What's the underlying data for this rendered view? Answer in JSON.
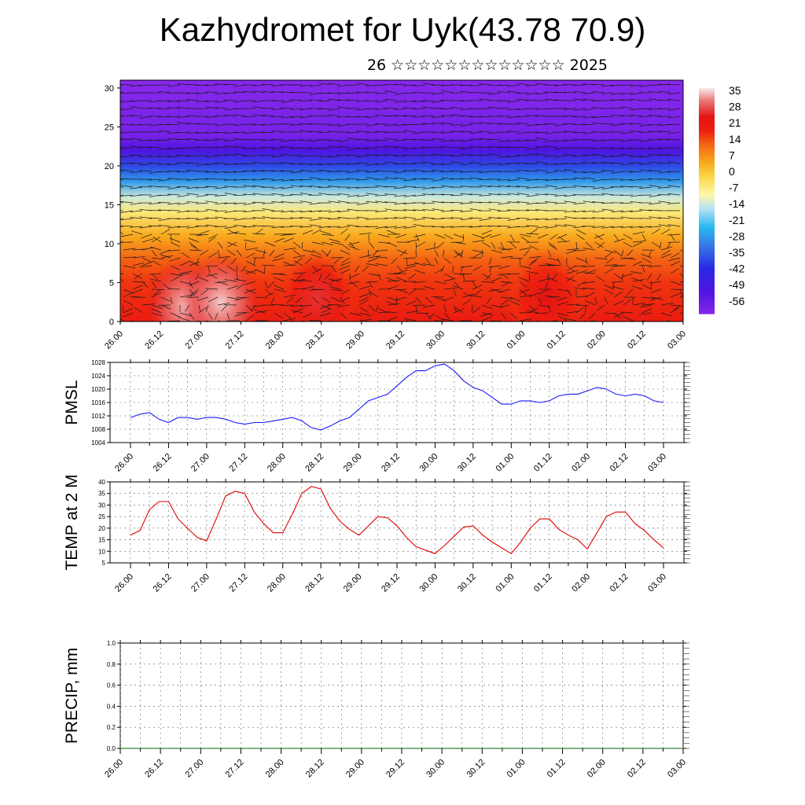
{
  "page": {
    "title": "Kazhydromet for Uyk(43.78 70.9)",
    "subtitle": "26 ☆☆☆☆☆☆☆☆☆☆☆☆☆ 2025"
  },
  "colors": {
    "pmsl_line": "#1a1aff",
    "temp_line": "#e00000",
    "precip_line": "#006400",
    "grid": "#555555"
  },
  "chart_data": [
    {
      "type": "heatmap",
      "name_hint": "vertical-profile",
      "x_ticks": [
        "26.00",
        "26.12",
        "27.00",
        "27.12",
        "28.00",
        "28.12",
        "29.00",
        "29.12",
        "30.00",
        "30.12",
        "01.00",
        "01.12",
        "02.00",
        "02.12",
        "03.00"
      ],
      "yticks": [
        0,
        5,
        10,
        15,
        20,
        25,
        30
      ],
      "ylim": [
        0,
        31
      ],
      "colorbar_labels": [
        "35",
        "28",
        "21",
        "14",
        "7",
        "0",
        "-7",
        "-14",
        "-21",
        "-28",
        "-35",
        "-42",
        "-49",
        "-56"
      ],
      "colorbar_range": [
        -60,
        38
      ],
      "layers": [
        {
          "height": 0,
          "value": 22
        },
        {
          "height": 5,
          "value": 18
        },
        {
          "height": 8,
          "value": 14
        },
        {
          "height": 11,
          "value": 6
        },
        {
          "height": 14,
          "value": -4
        },
        {
          "height": 16,
          "value": -12
        },
        {
          "height": 18,
          "value": -26
        },
        {
          "height": 20,
          "value": -36
        },
        {
          "height": 22,
          "value": -50
        },
        {
          "height": 24,
          "value": -57
        },
        {
          "height": 31,
          "value": -60
        }
      ],
      "warm_cores": [
        {
          "x": 1.6,
          "height": 2.0,
          "value": 36
        },
        {
          "x": 2.5,
          "height": 2.5,
          "value": 37
        },
        {
          "x": 4.9,
          "height": 3.0,
          "value": 28
        },
        {
          "x": 10.6,
          "height": 3.0,
          "value": 26
        }
      ]
    },
    {
      "type": "line",
      "ylabel": "PMSL",
      "x_ticks": [
        "26.00",
        "26.12",
        "27.00",
        "27.12",
        "28.00",
        "28.12",
        "29.00",
        "29.12",
        "30.00",
        "30.12",
        "01.00",
        "01.12",
        "02.00",
        "02.12",
        "03.00"
      ],
      "ylim": [
        1004,
        1028
      ],
      "yticks": [
        1004,
        1008,
        1012,
        1016,
        1020,
        1024,
        1028
      ],
      "series": [
        {
          "values": [
            1011.5,
            1012.5,
            1013,
            1011,
            1010,
            1011.5,
            1011.5,
            1011,
            1011.5,
            1011.5,
            1011,
            1010,
            1009.5,
            1010,
            1010,
            1010.5,
            1011,
            1011.5,
            1010.5,
            1008.5,
            1007.8,
            1009,
            1010.5,
            1011.5,
            1014,
            1016.5,
            1017.5,
            1018.5,
            1021,
            1023.5,
            1025.5,
            1025.5,
            1027,
            1027.5,
            1025.5,
            1022.5,
            1020.5,
            1019.5,
            1017.5,
            1015.5,
            1015.5,
            1016.5,
            1016.5,
            1016,
            1016.5,
            1018,
            1018.5,
            1018.5,
            1019.5,
            1020.5,
            1020,
            1018.5,
            1018,
            1018.5,
            1018,
            1016.5,
            1016
          ]
        }
      ]
    },
    {
      "type": "line",
      "ylabel": "TEMP at 2 M",
      "x_ticks": [
        "26.00",
        "26.12",
        "27.00",
        "27.12",
        "28.00",
        "28.12",
        "29.00",
        "29.12",
        "30.00",
        "30.12",
        "01.00",
        "01.12",
        "02.00",
        "02.12",
        "03.00"
      ],
      "ylim": [
        5,
        40
      ],
      "yticks": [
        5,
        10,
        15,
        20,
        25,
        30,
        35,
        40
      ],
      "series": [
        {
          "values": [
            17,
            19,
            28,
            31.5,
            31.5,
            24,
            20,
            16,
            14.5,
            24,
            34,
            36,
            35,
            27,
            22,
            18,
            18,
            26,
            35,
            38,
            37,
            28.5,
            23,
            19.5,
            17,
            21,
            25,
            24.5,
            21,
            16,
            12,
            10.5,
            9,
            12.5,
            16.5,
            20.5,
            21,
            17,
            14,
            11.5,
            9,
            14,
            20,
            24,
            24,
            19.5,
            17,
            15,
            11,
            18,
            25,
            27,
            27,
            22,
            19,
            15,
            11.5
          ]
        }
      ]
    },
    {
      "type": "line",
      "ylabel": "PRECIP, mm",
      "x_ticks": [
        "26.00",
        "26.12",
        "27.00",
        "27.12",
        "28.00",
        "28.12",
        "29.00",
        "29.12",
        "30.00",
        "30.12",
        "01.00",
        "01.12",
        "02.00",
        "02.12",
        "03.00"
      ],
      "ylim": [
        0,
        1
      ],
      "yticks": [
        "0.0",
        "0.2",
        "0.4",
        "0.6",
        "0.8",
        "1.0"
      ],
      "series": [
        {
          "values": [
            0,
            0,
            0,
            0,
            0,
            0,
            0,
            0,
            0,
            0,
            0,
            0,
            0,
            0,
            0,
            0,
            0,
            0,
            0,
            0,
            0,
            0,
            0,
            0,
            0,
            0,
            0,
            0,
            0,
            0,
            0,
            0,
            0,
            0,
            0,
            0,
            0,
            0,
            0,
            0,
            0,
            0,
            0,
            0,
            0,
            0,
            0,
            0,
            0,
            0,
            0,
            0,
            0,
            0,
            0,
            0,
            0
          ]
        }
      ]
    }
  ]
}
